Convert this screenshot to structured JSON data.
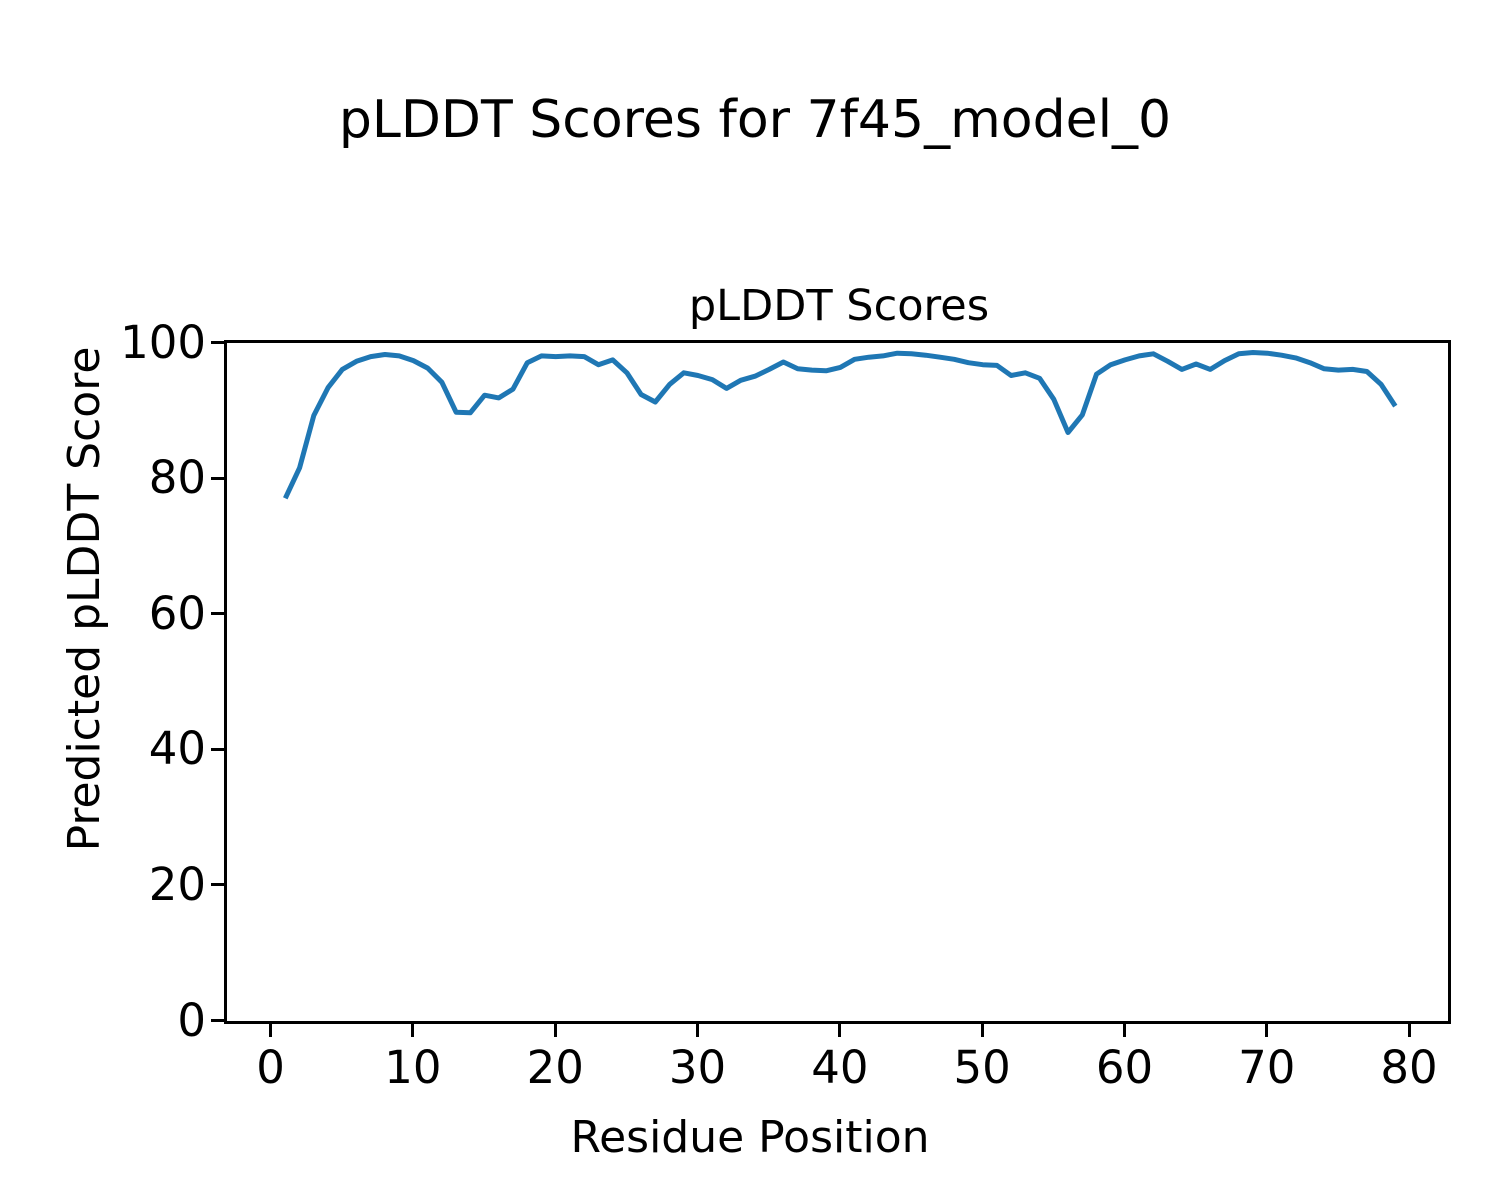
{
  "figure": {
    "suptitle": "pLDDT Scores for 7f45_model_0"
  },
  "chart_data": {
    "type": "line",
    "title": "pLDDT Scores",
    "xlabel": "Residue Position",
    "ylabel": "Predicted pLDDT Score",
    "series_name": "Predicted pLDDT Score",
    "x": [
      1,
      2,
      3,
      4,
      5,
      6,
      7,
      8,
      9,
      10,
      11,
      12,
      13,
      14,
      15,
      16,
      17,
      18,
      19,
      20,
      21,
      22,
      23,
      24,
      25,
      26,
      27,
      28,
      29,
      30,
      31,
      32,
      33,
      34,
      35,
      36,
      37,
      38,
      39,
      40,
      41,
      42,
      43,
      44,
      45,
      46,
      47,
      48,
      49,
      50,
      51,
      52,
      53,
      54,
      55,
      56,
      57,
      58,
      59,
      60,
      61,
      62,
      63,
      64,
      65,
      66,
      67,
      68,
      69,
      70,
      71,
      72,
      73,
      74,
      75,
      76,
      77,
      78,
      79
    ],
    "values": [
      77.1,
      81.6,
      89.3,
      93.4,
      96.1,
      97.3,
      98.0,
      98.3,
      98.1,
      97.4,
      96.3,
      94.2,
      89.8,
      89.7,
      92.3,
      91.9,
      93.2,
      97.1,
      98.1,
      98.0,
      98.1,
      98.0,
      96.8,
      97.5,
      95.6,
      92.4,
      91.3,
      93.9,
      95.6,
      95.2,
      94.6,
      93.3,
      94.5,
      95.1,
      96.1,
      97.2,
      96.2,
      96.0,
      95.9,
      96.4,
      97.6,
      97.9,
      98.1,
      98.5,
      98.4,
      98.2,
      97.9,
      97.6,
      97.1,
      96.8,
      96.7,
      95.2,
      95.6,
      94.8,
      91.7,
      86.8,
      89.4,
      95.4,
      96.8,
      97.5,
      98.1,
      98.4,
      97.3,
      96.1,
      96.9,
      96.1,
      97.4,
      98.4,
      98.6,
      98.5,
      98.2,
      97.8,
      97.1,
      96.2,
      96.0,
      96.1,
      95.8,
      93.9,
      90.7
    ],
    "xlim": [
      -3.1,
      82.7
    ],
    "ylim": [
      0,
      100
    ],
    "x_ticks": [
      0,
      10,
      20,
      30,
      40,
      50,
      60,
      70,
      80
    ],
    "y_ticks": [
      0,
      20,
      40,
      60,
      80,
      100
    ],
    "grid": false,
    "legend": null,
    "line_color": "#1f77b4",
    "line_width": 5,
    "axis_color": "#000000",
    "background_color": "#ffffff"
  }
}
